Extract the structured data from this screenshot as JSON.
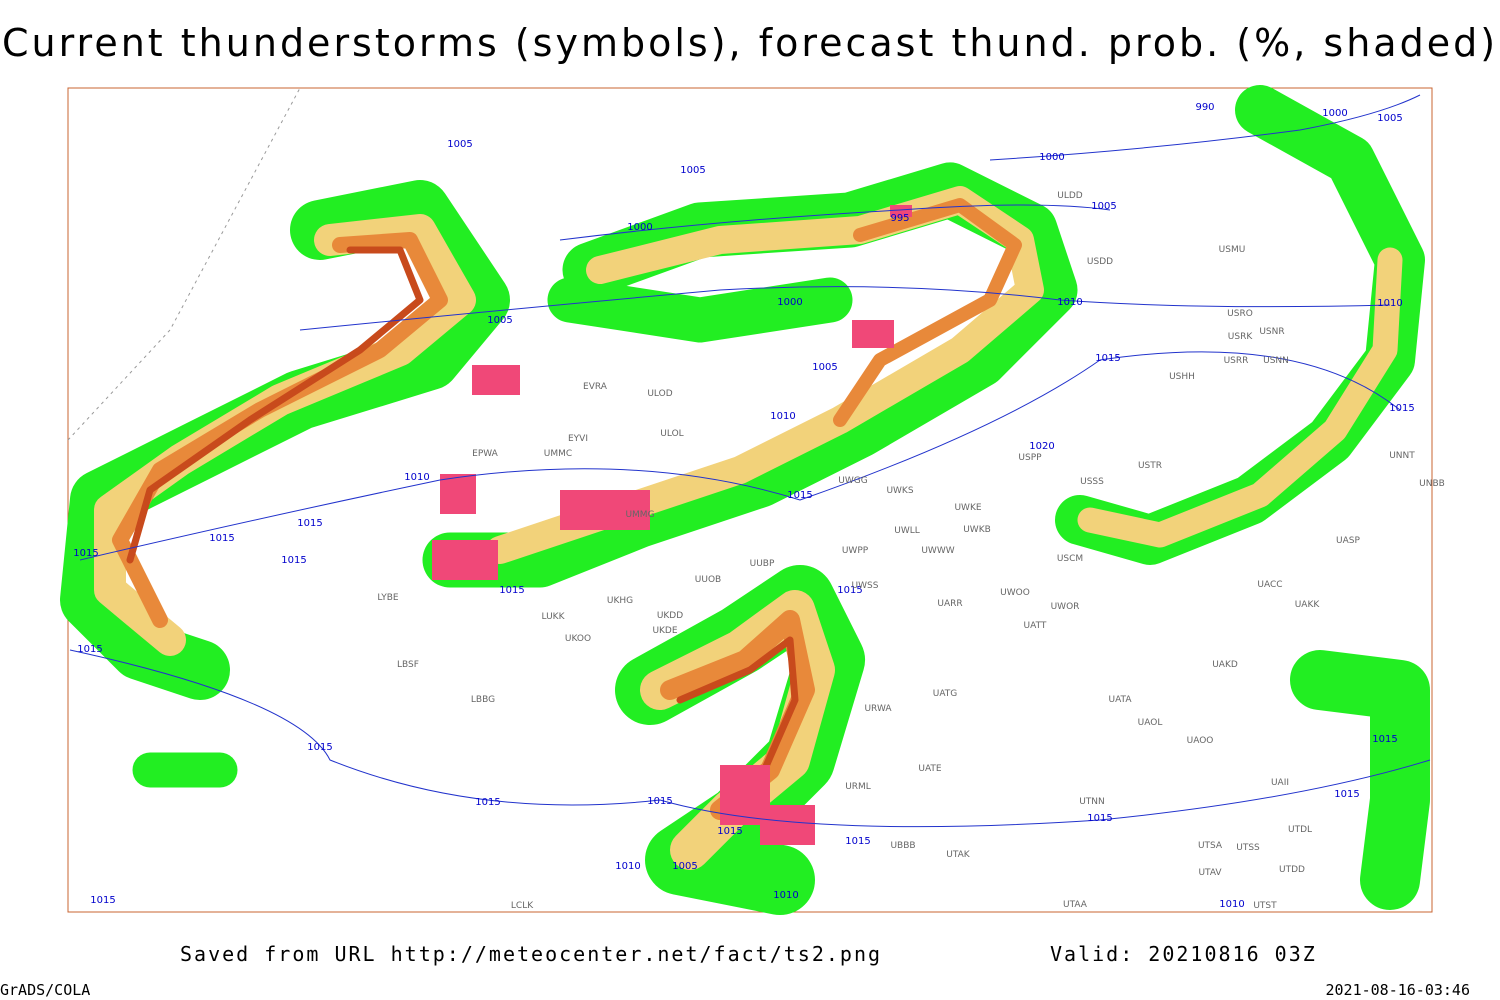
{
  "header": {
    "title": "Current thunderstorms (symbols), forecast thund. prob. (%, shaded)"
  },
  "footer": {
    "source": "Saved from URL http://meteocenter.net/fact/ts2.png",
    "valid": "Valid: 20210816 03Z",
    "software": "GrADS/COLA",
    "timestamp": "2021-08-16-03:46"
  },
  "isobar_labels": [
    "1005",
    "1005",
    "1000",
    "995",
    "1000",
    "1005",
    "1005",
    "1010",
    "1010",
    "1015",
    "1015",
    "1015",
    "1015",
    "1015",
    "1015",
    "1015",
    "1015",
    "1015",
    "1015",
    "1015",
    "1015",
    "1015",
    "1015",
    "1010",
    "1005",
    "1010",
    "1015",
    "1000",
    "1005",
    "990",
    "1000",
    "1005",
    "1010",
    "1010",
    "1015",
    "1015",
    "1020",
    "1015",
    "1015",
    "1010"
  ],
  "station_labels": [
    "ULDD",
    "USDD",
    "USMU",
    "USRO",
    "USRK",
    "USNR",
    "USRR",
    "USNN",
    "USHH",
    "USTR",
    "USSS",
    "USPP",
    "UWKS",
    "UWGG",
    "UWKE",
    "UWKB",
    "UWLL",
    "UWWW",
    "UWPP",
    "USCM",
    "UWOO",
    "UWOR",
    "UATT",
    "UARR",
    "UWSS",
    "UUOB",
    "UUBP",
    "UKHG",
    "UKDD",
    "UKDE",
    "UKOO",
    "LUKK",
    "LBSF",
    "LBBG",
    "LYBE",
    "UMMG",
    "UMMC",
    "EPWA",
    "EYVI",
    "ULOL",
    "EVRA",
    "ULOD",
    "UACC",
    "UAKK",
    "UASP",
    "UNNT",
    "UNBB",
    "UAKD",
    "UATG",
    "UATA",
    "UAOL",
    "UAOO",
    "URWA",
    "UATE",
    "UBBB",
    "UTAK",
    "UTNN",
    "UTSA",
    "UTSS",
    "UTAV",
    "UTST",
    "UTAA",
    "LCLK",
    "UTDL",
    "UAII",
    "UTDD",
    "URML"
  ]
}
